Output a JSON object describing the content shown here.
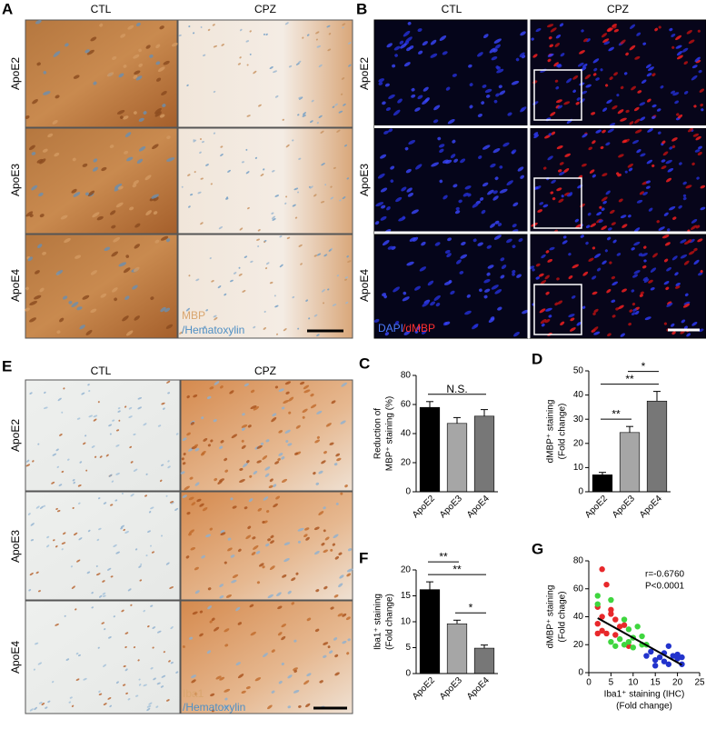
{
  "panels": {
    "A": {
      "label": "A",
      "columns": [
        "CTL",
        "CPZ"
      ],
      "rows": [
        "ApoE2",
        "ApoE3",
        "ApoE4"
      ],
      "stain": [
        "MBP",
        "/Hematoxylin"
      ]
    },
    "B": {
      "label": "B",
      "columns": [
        "CTL",
        "CPZ"
      ],
      "rows": [
        "ApoE2",
        "ApoE3",
        "ApoE4"
      ],
      "stain": [
        "DAPI",
        "/dMBP"
      ]
    },
    "E": {
      "label": "E",
      "columns": [
        "CTL",
        "CPZ"
      ],
      "rows": [
        "ApoE2",
        "ApoE3",
        "ApoE4"
      ],
      "stain": [
        "Iba1",
        "/Hematoxylin"
      ]
    }
  },
  "chart_data": [
    {
      "panel": "C",
      "type": "bar",
      "y_label": [
        "Reduction of",
        "MBP⁺ staining (%)"
      ],
      "categories": [
        "ApoE2",
        "ApoE3",
        "ApoE4"
      ],
      "values": [
        58,
        47,
        52
      ],
      "errors": [
        4,
        4,
        4.5
      ],
      "colors": [
        "#000000",
        "#a6a6a6",
        "#777777"
      ],
      "ylim": [
        0,
        80
      ],
      "yticks": [
        0,
        20,
        40,
        60,
        80
      ],
      "significance": [
        {
          "from": 0,
          "to": 2,
          "label": "N.S."
        }
      ]
    },
    {
      "panel": "D",
      "type": "bar",
      "y_label": [
        "dMBP⁺ staining",
        "(Fold change)"
      ],
      "categories": [
        "ApoE2",
        "ApoE3",
        "ApoE4"
      ],
      "values": [
        7,
        24.5,
        37.5
      ],
      "errors": [
        1,
        2.5,
        4
      ],
      "colors": [
        "#000000",
        "#a6a6a6",
        "#777777"
      ],
      "ylim": [
        0,
        50
      ],
      "yticks": [
        0,
        10,
        20,
        30,
        40,
        50
      ],
      "significance": [
        {
          "from": 0,
          "to": 1,
          "label": "**"
        },
        {
          "from": 0,
          "to": 2,
          "label": "**"
        },
        {
          "from": 1,
          "to": 2,
          "label": "*"
        }
      ]
    },
    {
      "panel": "F",
      "type": "bar",
      "y_label": [
        "Iba1⁺ staining",
        "(Fold change)"
      ],
      "categories": [
        "ApoE2",
        "ApoE3",
        "ApoE4"
      ],
      "values": [
        16.2,
        9.6,
        4.9
      ],
      "errors": [
        1.5,
        0.7,
        0.6
      ],
      "colors": [
        "#000000",
        "#a6a6a6",
        "#777777"
      ],
      "ylim": [
        0,
        20
      ],
      "yticks": [
        0,
        5,
        10,
        15,
        20
      ],
      "significance": [
        {
          "from": 1,
          "to": 2,
          "label": "*"
        },
        {
          "from": 0,
          "to": 2,
          "label": "**"
        },
        {
          "from": 0,
          "to": 1,
          "label": "**"
        }
      ]
    },
    {
      "panel": "G",
      "type": "scatter",
      "x_label": [
        "Iba1⁺ staining (IHC)",
        "(Fold change)"
      ],
      "y_label": [
        "dMBP⁺ staining",
        "(Fold chage)"
      ],
      "annotations": [
        "r=-0.6760",
        "P<0.0001"
      ],
      "xlim": [
        0,
        25
      ],
      "xticks": [
        0,
        5,
        10,
        15,
        20,
        25
      ],
      "ylim": [
        0,
        80
      ],
      "yticks": [
        0,
        20,
        40,
        60,
        80
      ],
      "series": [
        {
          "color": "#e8282b",
          "x": [
            3,
            4,
            2,
            3,
            5,
            5,
            6,
            7,
            2,
            3,
            4,
            2,
            6,
            8,
            9
          ],
          "values": [
            74,
            63,
            47,
            40,
            45,
            42,
            38,
            33,
            35,
            30,
            28,
            28,
            27,
            34,
            19
          ]
        },
        {
          "color": "#3fd63f",
          "x": [
            2,
            2,
            5,
            8,
            9,
            10,
            11,
            12,
            8,
            9,
            5,
            6,
            10,
            12,
            13,
            7
          ],
          "values": [
            55,
            49,
            52,
            38,
            31,
            25,
            33,
            26,
            20,
            22,
            22,
            19,
            18,
            20,
            20,
            24
          ]
        },
        {
          "color": "#2233cc",
          "x": [
            13,
            15,
            16,
            17,
            18,
            19,
            20,
            20,
            21,
            17,
            14,
            18,
            21,
            15
          ],
          "values": [
            12,
            9,
            11,
            8,
            6,
            12,
            10,
            13,
            11,
            14,
            15,
            19,
            6,
            5
          ]
        }
      ],
      "fit": {
        "x": [
          2,
          21
        ],
        "values": [
          39,
          5.5
        ]
      }
    }
  ]
}
